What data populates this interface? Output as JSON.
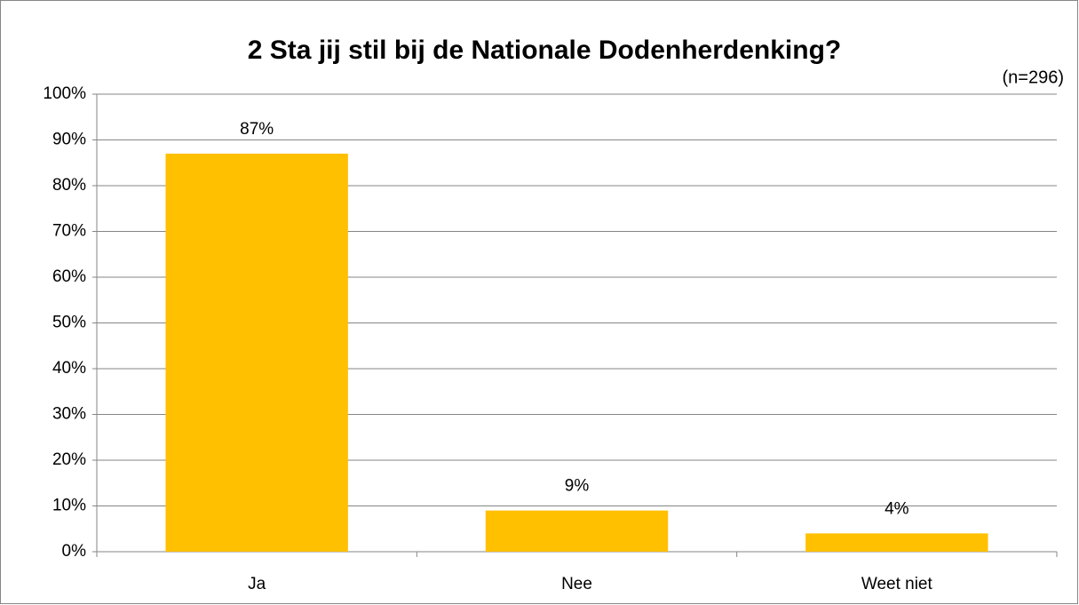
{
  "chart_data": {
    "type": "bar",
    "title": "2 Sta jij stil bij de Nationale Dodenherdenking?",
    "subtitle": "(n=296)",
    "categories": [
      "Ja",
      "Nee",
      "Weet niet"
    ],
    "values": [
      87,
      9,
      4
    ],
    "value_labels": [
      "87%",
      "9%",
      "4%"
    ],
    "color": "#ffc000",
    "ylim": [
      0,
      100
    ],
    "yticks": [
      {
        "value": 0,
        "label": "0%"
      },
      {
        "value": 10,
        "label": "10%"
      },
      {
        "value": 20,
        "label": "20%"
      },
      {
        "value": 30,
        "label": "30%"
      },
      {
        "value": 40,
        "label": "40%"
      },
      {
        "value": 50,
        "label": "50%"
      },
      {
        "value": 60,
        "label": "60%"
      },
      {
        "value": 70,
        "label": "70%"
      },
      {
        "value": 80,
        "label": "80%"
      },
      {
        "value": 90,
        "label": "90%"
      },
      {
        "value": 100,
        "label": "100%"
      }
    ],
    "grid": true
  }
}
